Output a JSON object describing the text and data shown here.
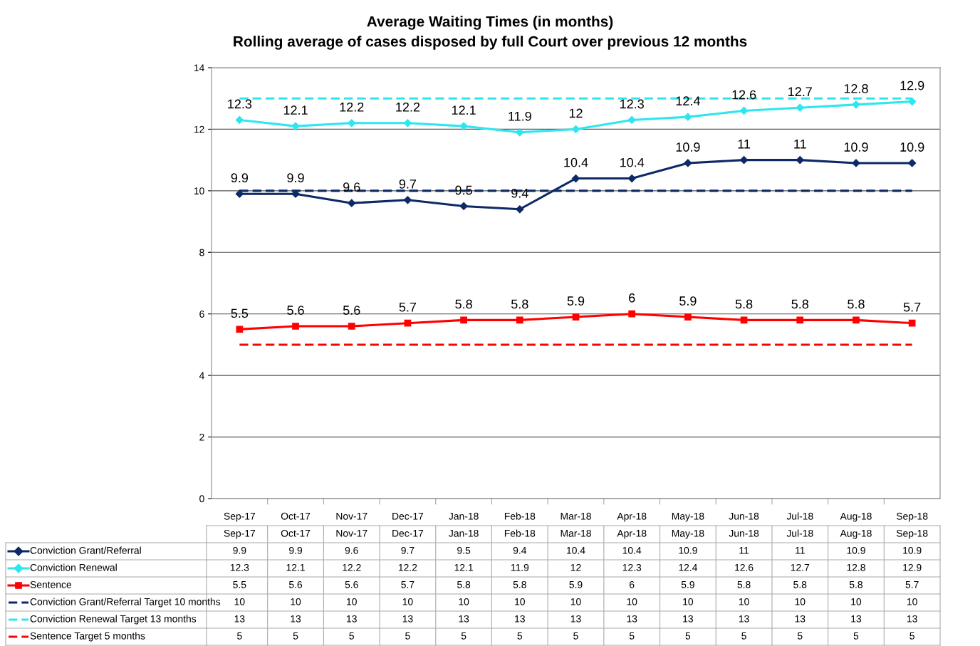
{
  "chart_data": [
    {
      "type": "line",
      "title": "Average Waiting Times (in months)",
      "subtitle": "Rolling average of cases disposed by full Court over previous 12 months",
      "categories": [
        "Sep-17",
        "Oct-17",
        "Nov-17",
        "Dec-17",
        "Jan-18",
        "Feb-18",
        "Mar-18",
        "Apr-18",
        "May-18",
        "Jun-18",
        "Jul-18",
        "Aug-18",
        "Sep-18"
      ],
      "series": [
        {
          "name": "Conviction Grant/Referral",
          "color": "#0d2a66",
          "marker": "diamond",
          "line_style": "solid",
          "values": [
            9.9,
            9.9,
            9.6,
            9.7,
            9.5,
            9.4,
            10.4,
            10.4,
            10.9,
            11,
            11,
            10.9,
            10.9
          ],
          "value_labels": [
            "9.9",
            "9.9",
            "9.6",
            "9.7",
            "9.5",
            "9.4",
            "10.4",
            "10.4",
            "10.9",
            "11",
            "11",
            "10.9",
            "10.9"
          ]
        },
        {
          "name": "Conviction Renewal",
          "color": "#2ee6f0",
          "marker": "diamond",
          "line_style": "solid",
          "values": [
            12.3,
            12.1,
            12.2,
            12.2,
            12.1,
            11.9,
            12,
            12.3,
            12.4,
            12.6,
            12.7,
            12.8,
            12.9
          ],
          "value_labels": [
            "12.3",
            "12.1",
            "12.2",
            "12.2",
            "12.1",
            "11.9",
            "12",
            "12.3",
            "12.4",
            "12.6",
            "12.7",
            "12.8",
            "12.9"
          ]
        },
        {
          "name": "Sentence",
          "color": "#ff0000",
          "marker": "square",
          "line_style": "solid",
          "values": [
            5.5,
            5.6,
            5.6,
            5.7,
            5.8,
            5.8,
            5.9,
            6,
            5.9,
            5.8,
            5.8,
            5.8,
            5.7
          ],
          "value_labels": [
            "5.5",
            "5.6",
            "5.6",
            "5.7",
            "5.8",
            "5.8",
            "5.9",
            "6",
            "5.9",
            "5.8",
            "5.8",
            "5.8",
            "5.7"
          ]
        },
        {
          "name": "Conviction Grant/Referral Target 10 months",
          "color": "#0d2a66",
          "marker": "none",
          "line_style": "dashed",
          "values": [
            10,
            10,
            10,
            10,
            10,
            10,
            10,
            10,
            10,
            10,
            10,
            10,
            10
          ]
        },
        {
          "name": "Conviction Renewal Target 13 months",
          "color": "#2ee6f0",
          "marker": "none",
          "line_style": "dashed",
          "values": [
            13,
            13,
            13,
            13,
            13,
            13,
            13,
            13,
            13,
            13,
            13,
            13,
            13
          ]
        },
        {
          "name": "Sentence Target 5 months",
          "color": "#ff0000",
          "marker": "none",
          "line_style": "dashed",
          "values": [
            5,
            5,
            5,
            5,
            5,
            5,
            5,
            5,
            5,
            5,
            5,
            5,
            5
          ]
        }
      ],
      "ylim": [
        0,
        14
      ],
      "yticks": [
        0,
        2,
        4,
        6,
        8,
        10,
        12,
        14
      ],
      "grid": "y",
      "legend": "bottom"
    },
    {
      "type": "other",
      "data_labels": true,
      "categories": [
        "Sep-17",
        "Oct-17",
        "Nov-17",
        "Dec-17",
        "Jan-18",
        "Feb-18",
        "Mar-18",
        "Apr-18",
        "May-18",
        "Jun-18",
        "Jul-18",
        "Aug-18",
        "Sep-18"
      ],
      "series": [
        {
          "values": [
            9.9,
            9.9,
            9.6,
            9.7,
            9.5,
            9.4,
            10.4,
            10.4,
            10.9,
            11,
            11,
            10.9,
            10.9
          ]
        },
        {
          "values": [
            12.3,
            12.1,
            12.2,
            12.2,
            12.1,
            11.9,
            12,
            12.3,
            12.4,
            12.6,
            12.7,
            12.8,
            12.9
          ]
        },
        {
          "values": [
            5.5,
            5.6,
            5.6,
            5.7,
            5.8,
            5.8,
            5.9,
            6,
            5.9,
            5.8,
            5.8,
            5.8,
            5.7
          ]
        },
        {
          "values": [
            10,
            10,
            10,
            10,
            10,
            10,
            10,
            10,
            10,
            10,
            10,
            10,
            10
          ]
        },
        {
          "values": [
            13,
            13,
            13,
            13,
            13,
            13,
            13,
            13,
            13,
            13,
            13,
            13,
            13
          ]
        },
        {
          "values": [
            5,
            5,
            5,
            5,
            5,
            5,
            5,
            5,
            5,
            5,
            5,
            5,
            5
          ]
        }
      ]
    }
  ]
}
